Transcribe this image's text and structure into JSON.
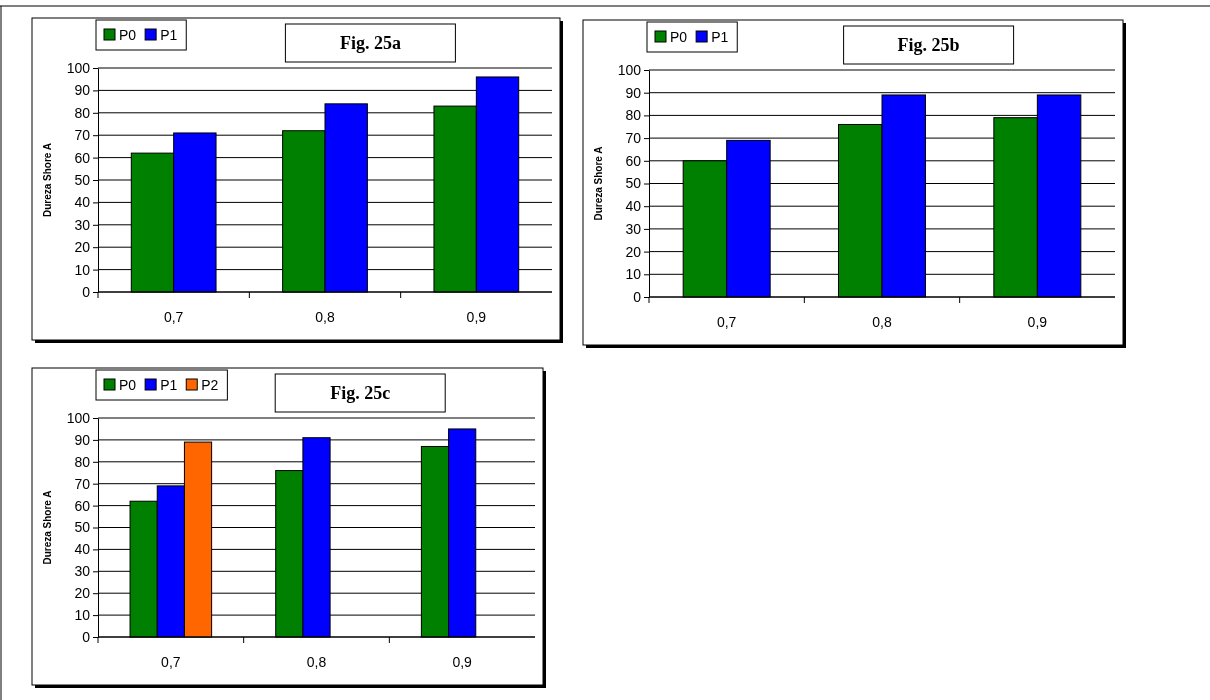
{
  "chart_data": [
    {
      "type": "bar",
      "title": "Fig. 25a",
      "ylabel": "Dureza Shore A",
      "categories": [
        "0,7",
        "0,8",
        "0,9"
      ],
      "series": [
        {
          "name": "P0",
          "color": "#008000",
          "values": [
            62,
            72,
            83
          ]
        },
        {
          "name": "P1",
          "color": "#0000ff",
          "values": [
            71,
            84,
            96
          ]
        }
      ],
      "ylim": [
        0,
        100
      ],
      "yticks": [
        0,
        10,
        20,
        30,
        40,
        50,
        60,
        70,
        80,
        90,
        100
      ],
      "grid": "y",
      "legend": "top left"
    },
    {
      "type": "bar",
      "title": "Fig. 25b",
      "ylabel": "Dureza Shore A",
      "categories": [
        "0,7",
        "0,8",
        "0,9"
      ],
      "series": [
        {
          "name": "P0",
          "color": "#008000",
          "values": [
            60,
            76,
            79
          ]
        },
        {
          "name": "P1",
          "color": "#0000ff",
          "values": [
            69,
            89,
            89
          ]
        }
      ],
      "ylim": [
        0,
        100
      ],
      "yticks": [
        0,
        10,
        20,
        30,
        40,
        50,
        60,
        70,
        80,
        90,
        100
      ],
      "grid": "y",
      "legend": "top left"
    },
    {
      "type": "bar",
      "title": "Fig. 25c",
      "ylabel": "Dureza Shore A",
      "categories": [
        "0,7",
        "0,8",
        "0,9"
      ],
      "series": [
        {
          "name": "P0",
          "color": "#008000",
          "values": [
            62,
            76,
            87
          ]
        },
        {
          "name": "P1",
          "color": "#0000ff",
          "values": [
            69,
            91,
            95
          ]
        },
        {
          "name": "P2",
          "color": "#ff6600",
          "values": [
            89,
            null,
            null
          ]
        }
      ],
      "ylim": [
        0,
        100
      ],
      "yticks": [
        0,
        10,
        20,
        30,
        40,
        50,
        60,
        70,
        80,
        90,
        100
      ],
      "grid": "y",
      "legend": "top left"
    }
  ]
}
